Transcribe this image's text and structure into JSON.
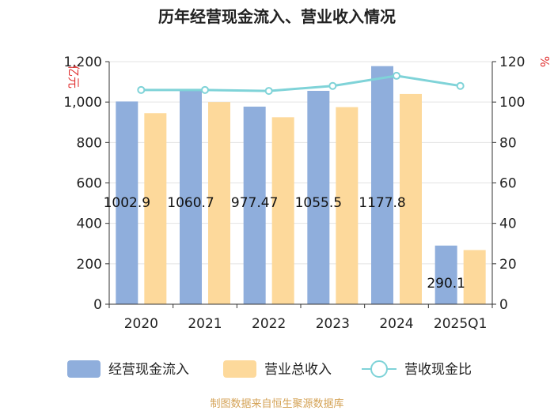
{
  "chart_data": {
    "type": "bar",
    "title": "历年经营现金流入、营业收入情况",
    "categories": [
      "2020",
      "2021",
      "2022",
      "2023",
      "2024",
      "2025Q1"
    ],
    "ylabel_left": "亿元",
    "ylabel_right": "%",
    "ylim_left": [
      0,
      1200
    ],
    "ylim_right": [
      0,
      120
    ],
    "yticks_left": [
      "0",
      "200",
      "400",
      "600",
      "800",
      "1,000",
      "1,200"
    ],
    "yticks_right": [
      "0",
      "20",
      "40",
      "60",
      "80",
      "100",
      "120"
    ],
    "grid": true,
    "legend_position": "bottom",
    "series": [
      {
        "name": "经营现金流入",
        "kind": "bar",
        "axis": "left",
        "color": "#8faedc",
        "values": [
          1002.9,
          1060.7,
          977.47,
          1055.5,
          1177.8,
          290.1
        ],
        "data_labels": [
          "1002.9",
          "1060.7",
          "977.47",
          "1055.5",
          "1177.8",
          "290.1"
        ]
      },
      {
        "name": "营业总收入",
        "kind": "bar",
        "axis": "left",
        "color": "#fdd99b",
        "values": [
          945,
          1000,
          925,
          975,
          1040,
          268
        ]
      },
      {
        "name": "营收现金比",
        "kind": "line",
        "axis": "right",
        "color": "#7fd3d8",
        "values": [
          106,
          106,
          105.5,
          108,
          113,
          108
        ]
      }
    ],
    "source": "制图数据来自恒生聚源数据库"
  }
}
